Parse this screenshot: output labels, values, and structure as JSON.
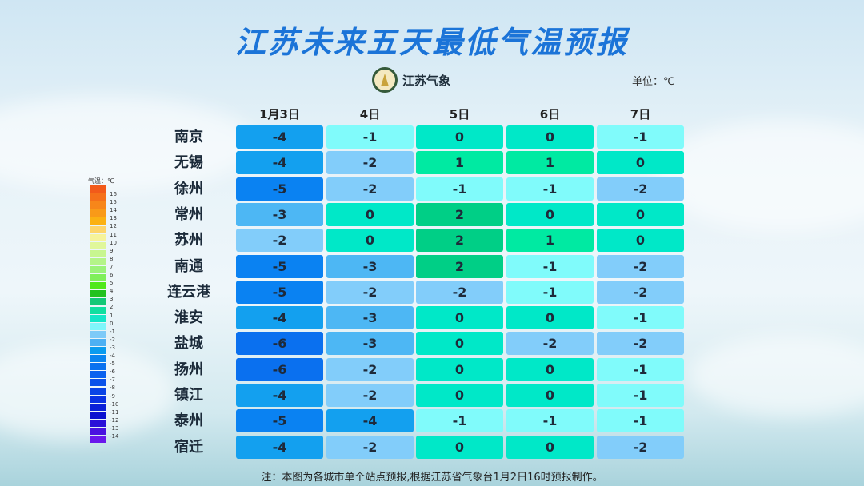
{
  "title": "江苏未来五天最低气温预报",
  "logo_text": "江苏气象",
  "unit": "单位：℃",
  "days": [
    "1月3日",
    "4日",
    "5日",
    "6日",
    "7日"
  ],
  "rows": [
    {
      "city": "南京",
      "values": [
        -4,
        -1,
        0,
        0,
        -1
      ]
    },
    {
      "city": "无锡",
      "values": [
        -4,
        -2,
        1,
        1,
        0
      ]
    },
    {
      "city": "徐州",
      "values": [
        -5,
        -2,
        -1,
        -1,
        -2
      ]
    },
    {
      "city": "常州",
      "values": [
        -3,
        0,
        2,
        0,
        0
      ]
    },
    {
      "city": "苏州",
      "values": [
        -2,
        0,
        2,
        1,
        0
      ]
    },
    {
      "city": "南通",
      "values": [
        -5,
        -3,
        2,
        -1,
        -2
      ]
    },
    {
      "city": "连云港",
      "values": [
        -5,
        -2,
        -2,
        -1,
        -2
      ]
    },
    {
      "city": "淮安",
      "values": [
        -4,
        -3,
        0,
        0,
        -1
      ]
    },
    {
      "city": "盐城",
      "values": [
        -6,
        -3,
        0,
        -2,
        -2
      ]
    },
    {
      "city": "扬州",
      "values": [
        -6,
        -2,
        0,
        0,
        -1
      ]
    },
    {
      "city": "镇江",
      "values": [
        -4,
        -2,
        0,
        0,
        -1
      ]
    },
    {
      "city": "泰州",
      "values": [
        -5,
        -4,
        -1,
        -1,
        -1
      ]
    },
    {
      "city": "宿迁",
      "values": [
        -4,
        -2,
        0,
        0,
        -2
      ]
    }
  ],
  "value_colors": {
    "2": "#00cf86",
    "1": "#00eaa2",
    "0": "#00e8c8",
    "-1": "#80fbfb",
    "-2": "#82cdfa",
    "-3": "#4db7f4",
    "-4": "#13a0ef",
    "-5": "#0a82f2",
    "-6": "#0a70ef"
  },
  "legend": {
    "title": "气温：℃",
    "labels": [
      "16",
      "15",
      "14",
      "13",
      "12",
      "11",
      "10",
      "9",
      "8",
      "7",
      "6",
      "5",
      "4",
      "3",
      "2",
      "1",
      "0",
      "-1",
      "-2",
      "-3",
      "-4",
      "-5",
      "-6",
      "-7",
      "-8",
      "-9",
      "-10",
      "-11",
      "-12",
      "-13",
      "-14"
    ],
    "colors": [
      "#f25a1a",
      "#f5701a",
      "#f7861a",
      "#f99a18",
      "#fbb112",
      "#fdd56a",
      "#f6f39a",
      "#e0f79a",
      "#c8f690",
      "#b4f489",
      "#9bf27a",
      "#7fef5a",
      "#4fe81a",
      "#22c21f",
      "#13c877",
      "#10dfa0",
      "#14e6c8",
      "#7ff6fb",
      "#7dcaf8",
      "#4cb0f3",
      "#0a9cef",
      "#0a85f0",
      "#0a72ef",
      "#0a62ef",
      "#0a52ea",
      "#0a44e6",
      "#0a32e3",
      "#0a20d8",
      "#0a10d0",
      "#2a10d8",
      "#4a12e0",
      "#6a18ec"
    ]
  },
  "note": "注：本图为各城市单个站点预报,根据江苏省气象台1月2日16时预报制作。"
}
